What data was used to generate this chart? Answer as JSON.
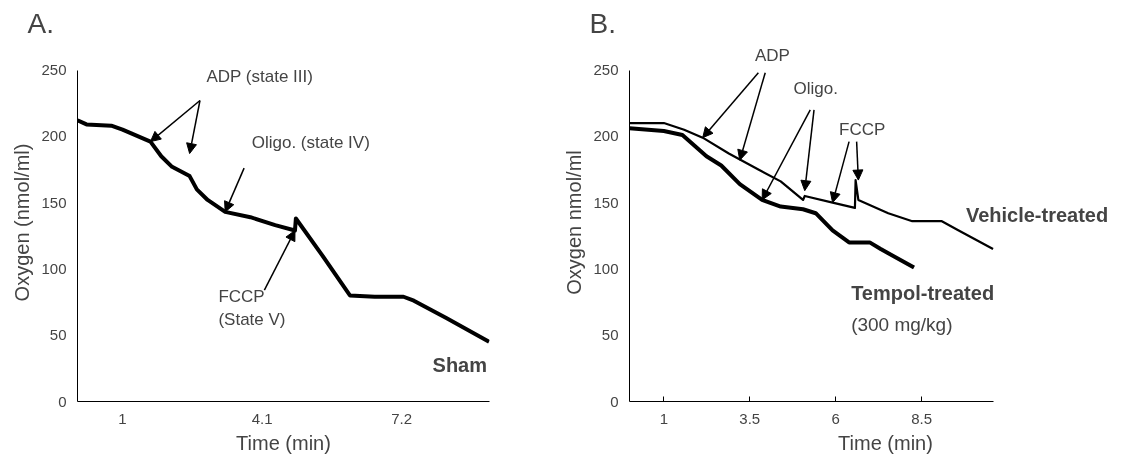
{
  "chart_data": [
    {
      "type": "line",
      "title": "A.",
      "xlabel": "Time (min)",
      "ylabel": "Oxygen (nmol/ml)",
      "xlim": [
        0,
        9.15
      ],
      "xticks": [
        1,
        4.1,
        7.2
      ],
      "ylim": [
        0,
        250
      ],
      "yticks": [
        0,
        50,
        100,
        150,
        200,
        250
      ],
      "grid": false,
      "series": [
        {
          "name": "Sham",
          "color": "#000000",
          "x": [
            0,
            0.2,
            0.75,
            1.0,
            1.62,
            1.86,
            2.1,
            2.49,
            2.65,
            2.89,
            3.28,
            3.84,
            4.39,
            4.83,
            4.85,
            5.42,
            6.05,
            6.6,
            7.24,
            7.47,
            8.19,
            9.14
          ],
          "values": [
            212,
            209,
            208,
            205,
            196,
            185,
            177,
            170,
            160,
            152,
            143,
            139,
            133,
            129,
            138,
            111,
            80,
            79,
            79,
            76,
            63,
            45
          ]
        }
      ],
      "annotations": [
        {
          "text": "ADP (state III)",
          "x": 1.62,
          "y": 196
        },
        {
          "text": "Oligo. (state IV)",
          "x": 3.28,
          "y": 143
        },
        {
          "text": "FCCP\n(State V)",
          "x": 4.83,
          "y": 129
        }
      ]
    },
    {
      "type": "line",
      "title": "B.",
      "xlabel": "Time (min)",
      "ylabel": "Oxygen nmol/ml",
      "xlim": [
        0,
        10.6
      ],
      "xticks": [
        1,
        3.5,
        6,
        8.5
      ],
      "ylim": [
        0,
        250
      ],
      "yticks": [
        0,
        50,
        100,
        150,
        200,
        250
      ],
      "grid": false,
      "series": [
        {
          "name": "Vehicle-treated",
          "color": "#000000",
          "x": [
            0,
            1,
            1.59,
            2.13,
            2.89,
            3.75,
            4.4,
            5.05,
            5.1,
            5.91,
            6.56,
            6.58,
            6.66,
            7.53,
            8.23,
            9.09,
            9.58,
            10.58
          ],
          "values": [
            210,
            210,
            205,
            199,
            187,
            175,
            166,
            152,
            155,
            150,
            146,
            167,
            152,
            142,
            136,
            136,
            129,
            115
          ]
        },
        {
          "name": "Tempol-treated",
          "color": "#000000",
          "x": [
            0,
            1,
            1.54,
            2.24,
            2.67,
            3.21,
            3.86,
            4.4,
            5.05,
            5.42,
            5.91,
            6.39,
            6.99,
            7.31,
            8.28
          ],
          "values": [
            206,
            204,
            201,
            185,
            178,
            164,
            152,
            147,
            145,
            142,
            129,
            120,
            120,
            115,
            101
          ]
        }
      ],
      "annotations": [
        {
          "text": "ADP",
          "x": 2.13,
          "y": 199
        },
        {
          "text": "Oligo.",
          "x": 3.86,
          "y": 152
        },
        {
          "text": "FCCP",
          "x": 5.91,
          "y": 150
        },
        "(300 mg/kg)"
      ]
    }
  ]
}
